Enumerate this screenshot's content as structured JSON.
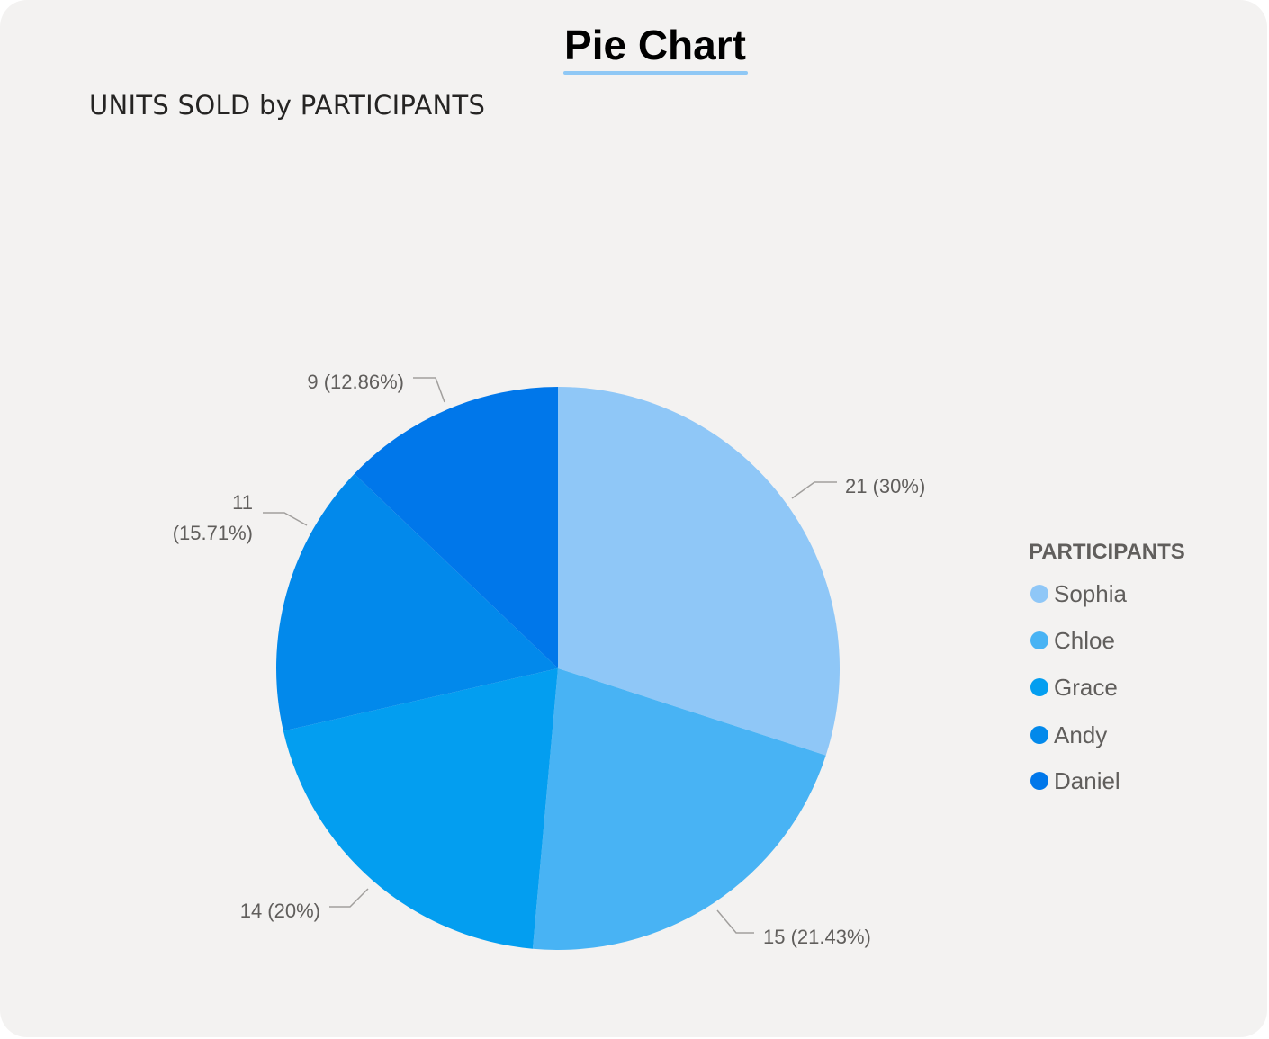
{
  "header": {
    "title": "Pie Chart"
  },
  "chart_data": {
    "type": "pie",
    "title": "UNITS SOLD by PARTICIPANTS",
    "legend_title": "PARTICIPANTS",
    "legend_position": "right",
    "categories": [
      "Sophia",
      "Chloe",
      "Grace",
      "Andy",
      "Daniel"
    ],
    "values": [
      21,
      15,
      14,
      11,
      9
    ],
    "percents": [
      30,
      21.43,
      20,
      15.71,
      12.86
    ],
    "data_labels": [
      "21 (30%)",
      "15 (21.43%)",
      "14 (20%)",
      "11 (15.71%)",
      "9 (12.86%)"
    ],
    "colors": [
      "#8fc7f7",
      "#48b3f4",
      "#039ef0",
      "#0289eb",
      "#0077ea"
    ]
  }
}
